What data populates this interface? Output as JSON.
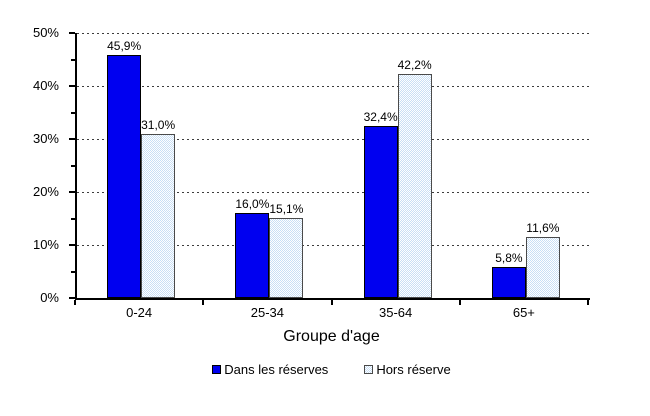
{
  "chart_data": {
    "type": "bar",
    "title": "",
    "xlabel": "Groupe d'age",
    "ylabel": "",
    "categories": [
      "0-24",
      "25-34",
      "35-64",
      "65+"
    ],
    "series": [
      {
        "name": "Dans les réserves",
        "color": "#0000F0",
        "border_color": "#000000",
        "values": [
          45.9,
          16.0,
          32.4,
          5.8
        ],
        "labels": [
          "45,9%",
          "16,0%",
          "32,4%",
          "5,8%"
        ]
      },
      {
        "name": "Hors réserve",
        "color": "#C9DFF5",
        "fill_pattern": "checker-on-white",
        "border_color": "#4A4A4A",
        "values": [
          31.0,
          15.1,
          42.2,
          11.6
        ],
        "labels": [
          "31,0%",
          "15,1%",
          "42,2%",
          "11,6%"
        ]
      }
    ],
    "ylim": [
      0,
      50
    ],
    "ytick_step": 10,
    "ytick_minor_step": 5,
    "ytick_labels": [
      "0%",
      "10%",
      "20%",
      "30%",
      "40%",
      "50%"
    ],
    "grid": "horizontal-dashed",
    "gridline_color": "#3C3C3C",
    "axis_color": "#000000",
    "legend_position": "bottom",
    "background": "#FFFFFF"
  }
}
